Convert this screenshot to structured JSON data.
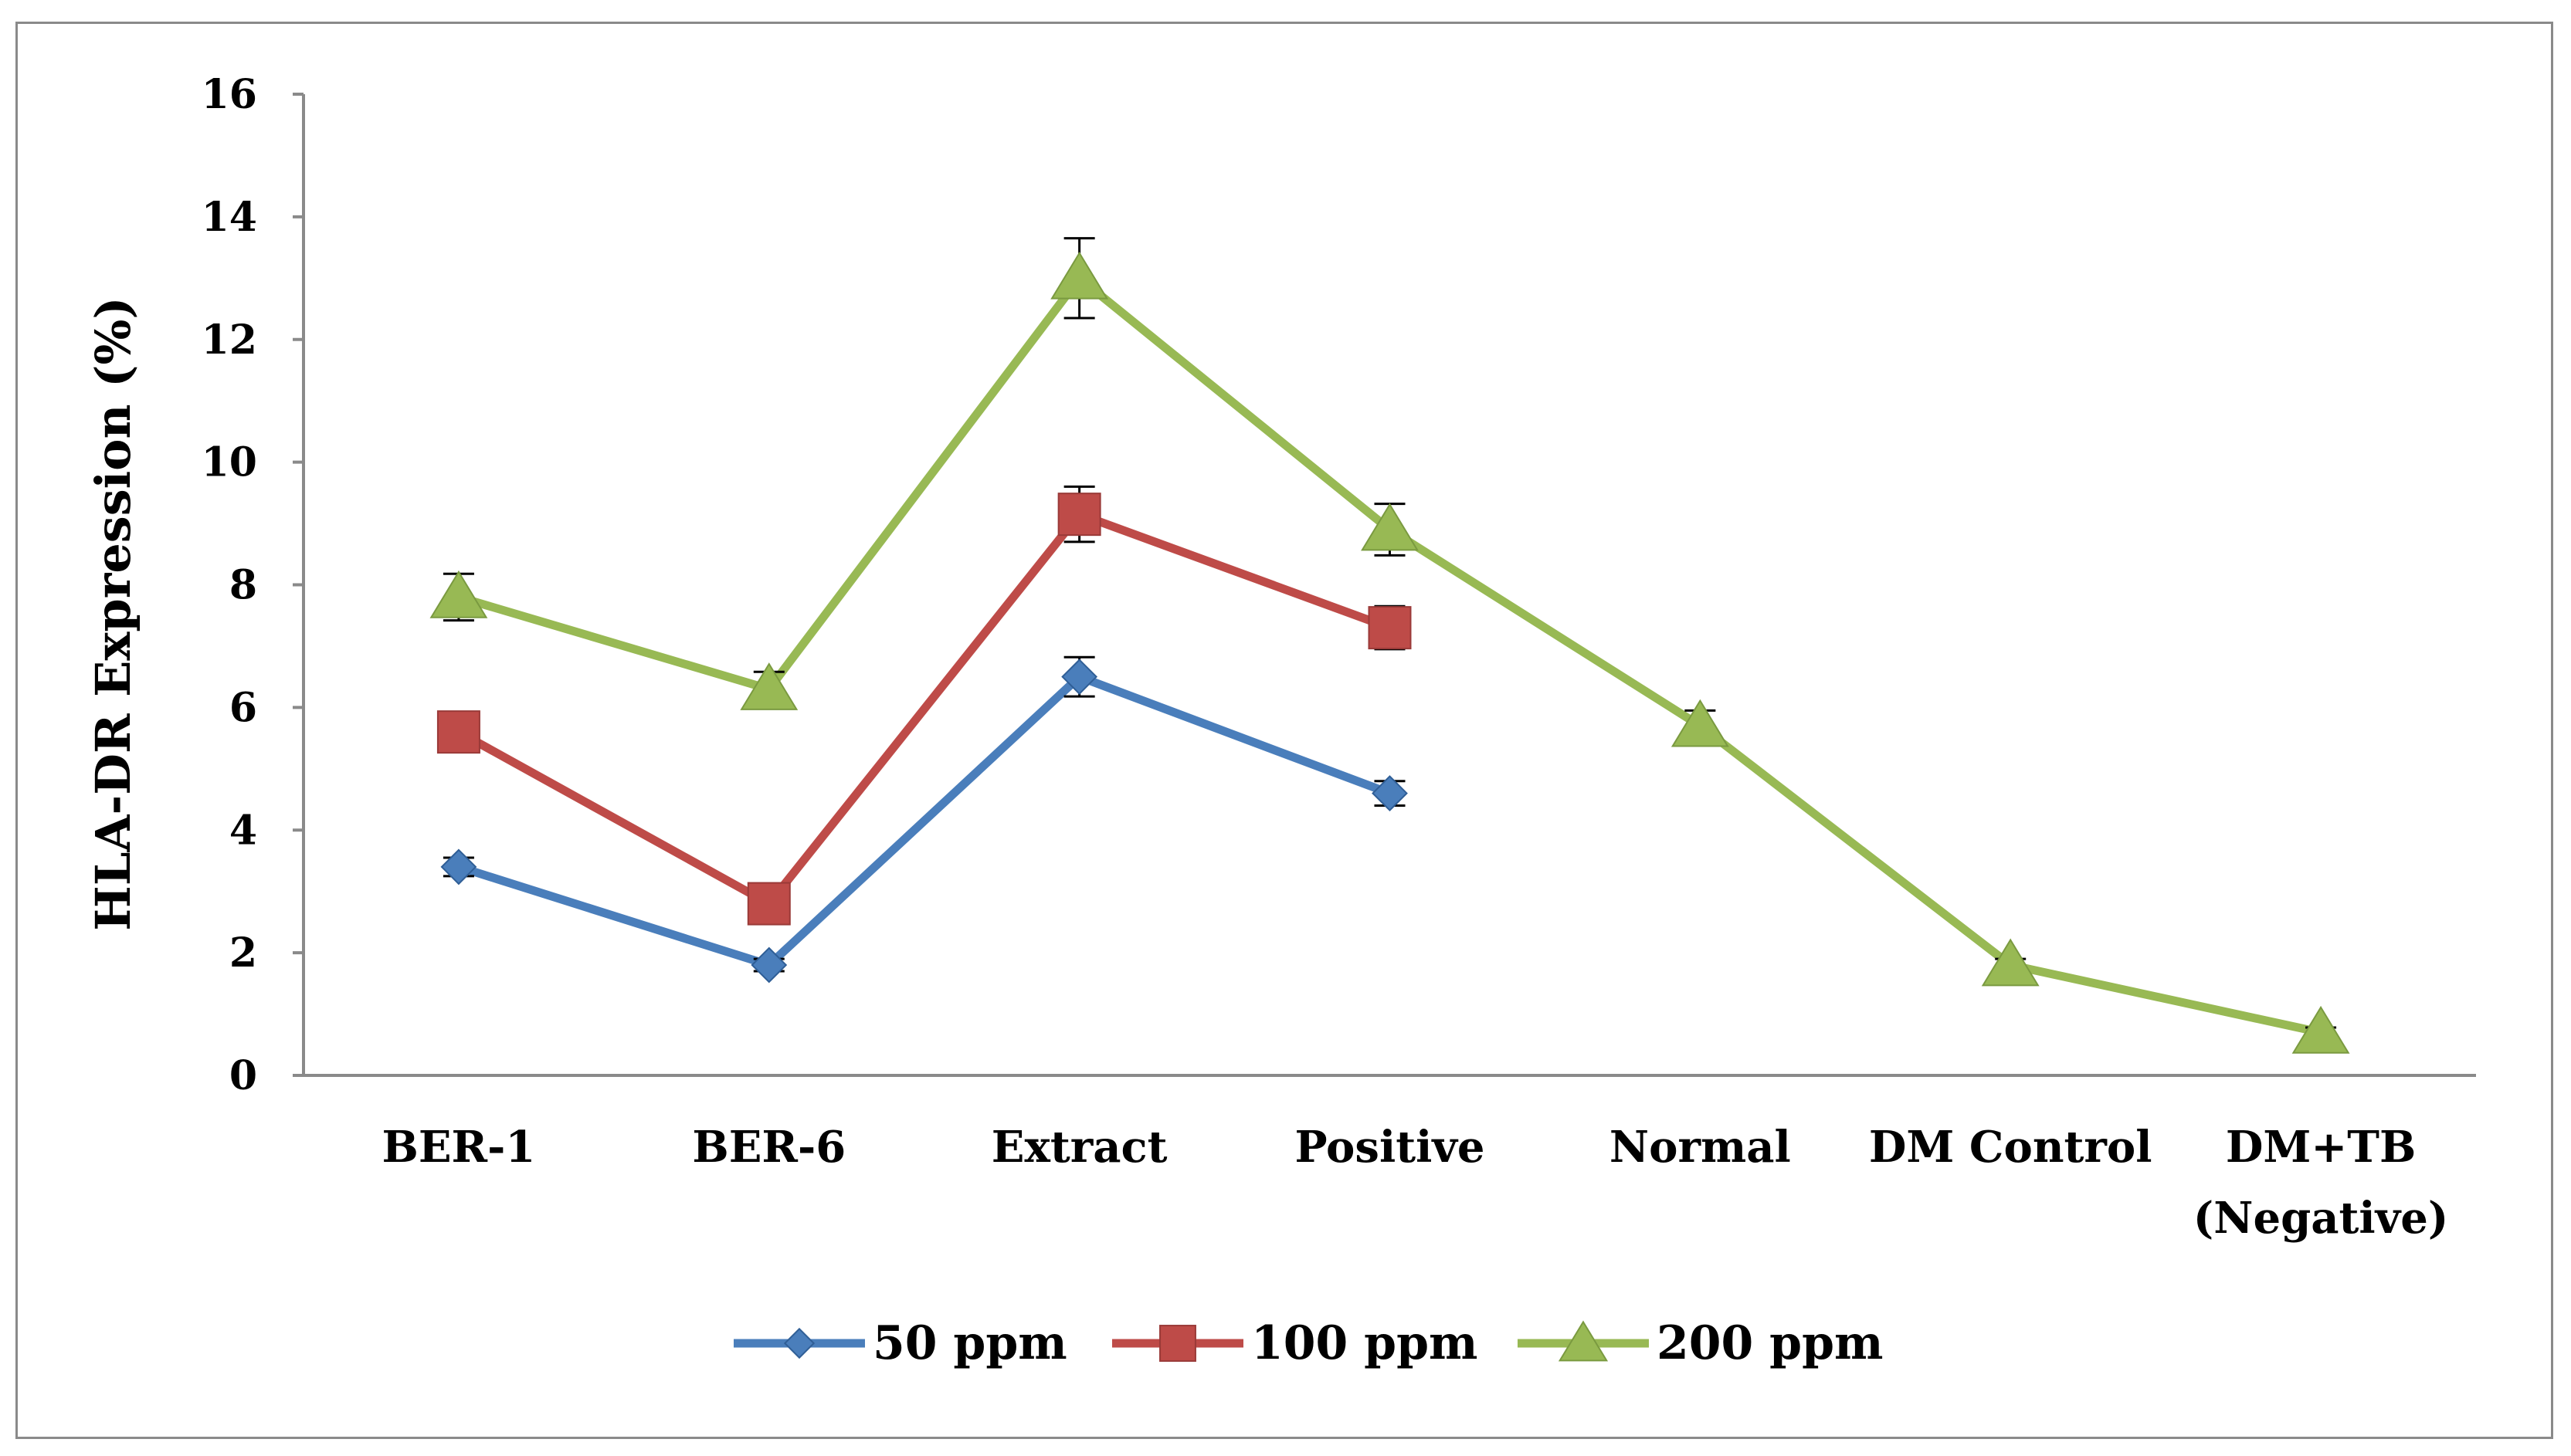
{
  "chart_data": {
    "type": "line",
    "title": "",
    "xlabel": "",
    "ylabel": "HLA-DR Expression (%)",
    "ylim": [
      0,
      16
    ],
    "yticks": [
      0,
      2,
      4,
      6,
      8,
      10,
      12,
      14,
      16
    ],
    "grid": false,
    "legend_position": "bottom",
    "categories": [
      [
        "BER-1"
      ],
      [
        "BER-6"
      ],
      [
        "Extract"
      ],
      [
        "Positive"
      ],
      [
        "Normal"
      ],
      [
        "DM Control"
      ],
      [
        "DM+TB",
        "(Negative)"
      ]
    ],
    "series": [
      {
        "name": "50 ppm",
        "color": "#4a7ebb",
        "marker": "diamond",
        "values": [
          3.4,
          1.8,
          6.5,
          4.6,
          null,
          null,
          null
        ],
        "errors": [
          0.15,
          0.1,
          0.32,
          0.2,
          null,
          null,
          null
        ]
      },
      {
        "name": "100 ppm",
        "color": "#be4b48",
        "marker": "square",
        "values": [
          5.6,
          2.8,
          9.15,
          7.3,
          null,
          null,
          null
        ],
        "errors": [
          0.12,
          0.1,
          0.45,
          0.35,
          null,
          null,
          null
        ]
      },
      {
        "name": "200 ppm",
        "color": "#98b954",
        "marker": "triangle",
        "values": [
          7.8,
          6.3,
          13.0,
          8.9,
          5.7,
          1.8,
          0.7
        ],
        "errors": [
          0.38,
          0.28,
          0.65,
          0.42,
          0.25,
          0.1,
          0.08
        ]
      }
    ]
  }
}
